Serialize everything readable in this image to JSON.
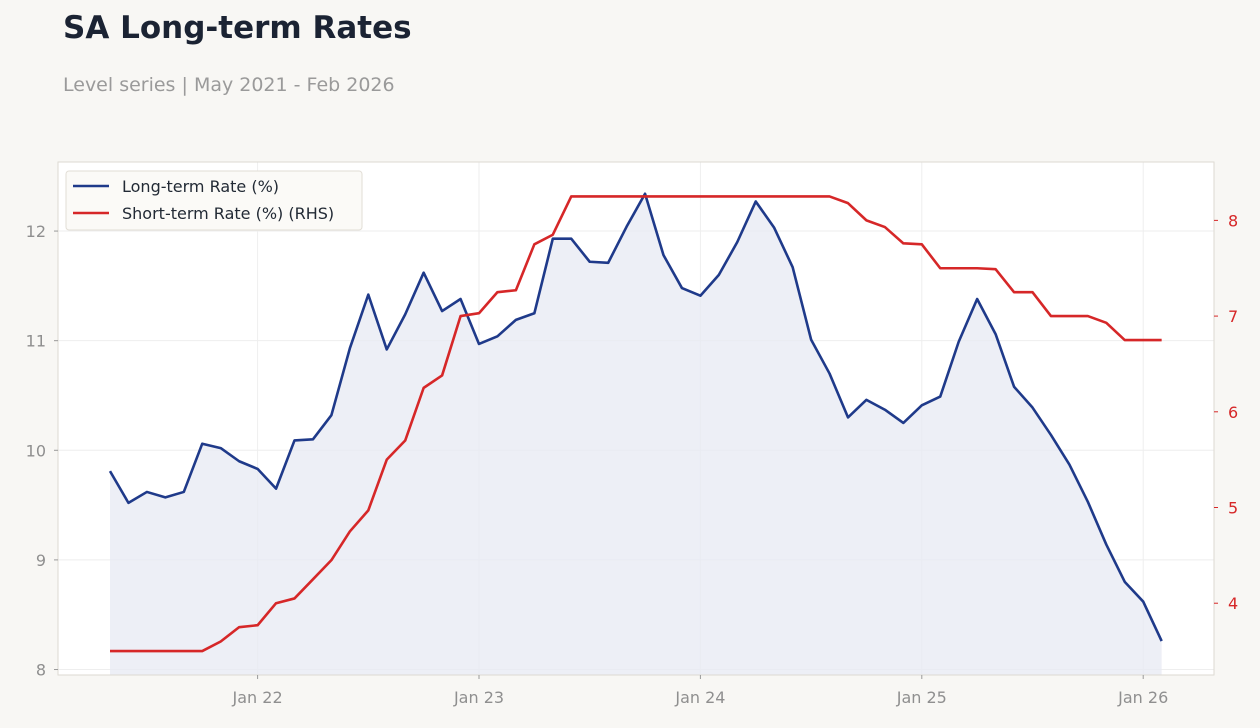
{
  "title": "SA Long-term Rates",
  "subtitle": "Level series | May 2021 - Feb 2026",
  "colors": {
    "left": "#1f3a8a",
    "right": "#d62728",
    "fill": "#e7e9f3",
    "bg": "#f8f7f4"
  },
  "chart_data": {
    "type": "line",
    "x_start": "2021-05",
    "x_tick_labels": [
      "Jan 22",
      "Jan 23",
      "Jan 24",
      "Jan 25",
      "Jan 26"
    ],
    "ylim_left": [
      7.95,
      12.63
    ],
    "yticks_left": [
      8,
      9,
      10,
      11,
      12
    ],
    "ylim_right": [
      3.25,
      8.61
    ],
    "yticks_right": [
      4,
      5,
      6,
      7,
      8
    ],
    "grid": true,
    "legend_position": "top-left",
    "series": [
      {
        "name": "Long-term Rate (%)",
        "axis": "left",
        "fill": true,
        "values": [
          9.81,
          9.52,
          9.62,
          9.57,
          9.62,
          10.06,
          10.02,
          9.9,
          9.83,
          9.65,
          10.09,
          10.1,
          10.32,
          10.93,
          11.42,
          10.92,
          11.24,
          11.62,
          11.27,
          11.38,
          10.97,
          11.04,
          11.19,
          11.25,
          11.93,
          11.93,
          11.72,
          11.71,
          12.04,
          12.34,
          11.78,
          11.48,
          11.41,
          11.6,
          11.9,
          12.27,
          12.03,
          11.67,
          11.01,
          10.7,
          10.3,
          10.46,
          10.37,
          10.25,
          10.41,
          10.49,
          10.99,
          11.38,
          11.06,
          10.58,
          10.39,
          10.14,
          9.87,
          9.53,
          9.14,
          8.8,
          8.62,
          8.26
        ]
      },
      {
        "name": "Short-term Rate (%) (RHS)",
        "axis": "right",
        "values": [
          3.5,
          3.5,
          3.5,
          3.5,
          3.5,
          3.5,
          3.6,
          3.75,
          3.77,
          4.0,
          4.05,
          4.25,
          4.45,
          4.75,
          4.97,
          5.5,
          5.7,
          6.25,
          6.38,
          7.0,
          7.03,
          7.25,
          7.27,
          7.75,
          7.85,
          8.25,
          8.25,
          8.25,
          8.25,
          8.25,
          8.25,
          8.25,
          8.25,
          8.25,
          8.25,
          8.25,
          8.25,
          8.25,
          8.25,
          8.25,
          8.18,
          8.0,
          7.93,
          7.76,
          7.75,
          7.5,
          7.5,
          7.5,
          7.49,
          7.25,
          7.25,
          7.0,
          7.0,
          7.0,
          6.93,
          6.75,
          6.75,
          6.75
        ]
      }
    ]
  }
}
